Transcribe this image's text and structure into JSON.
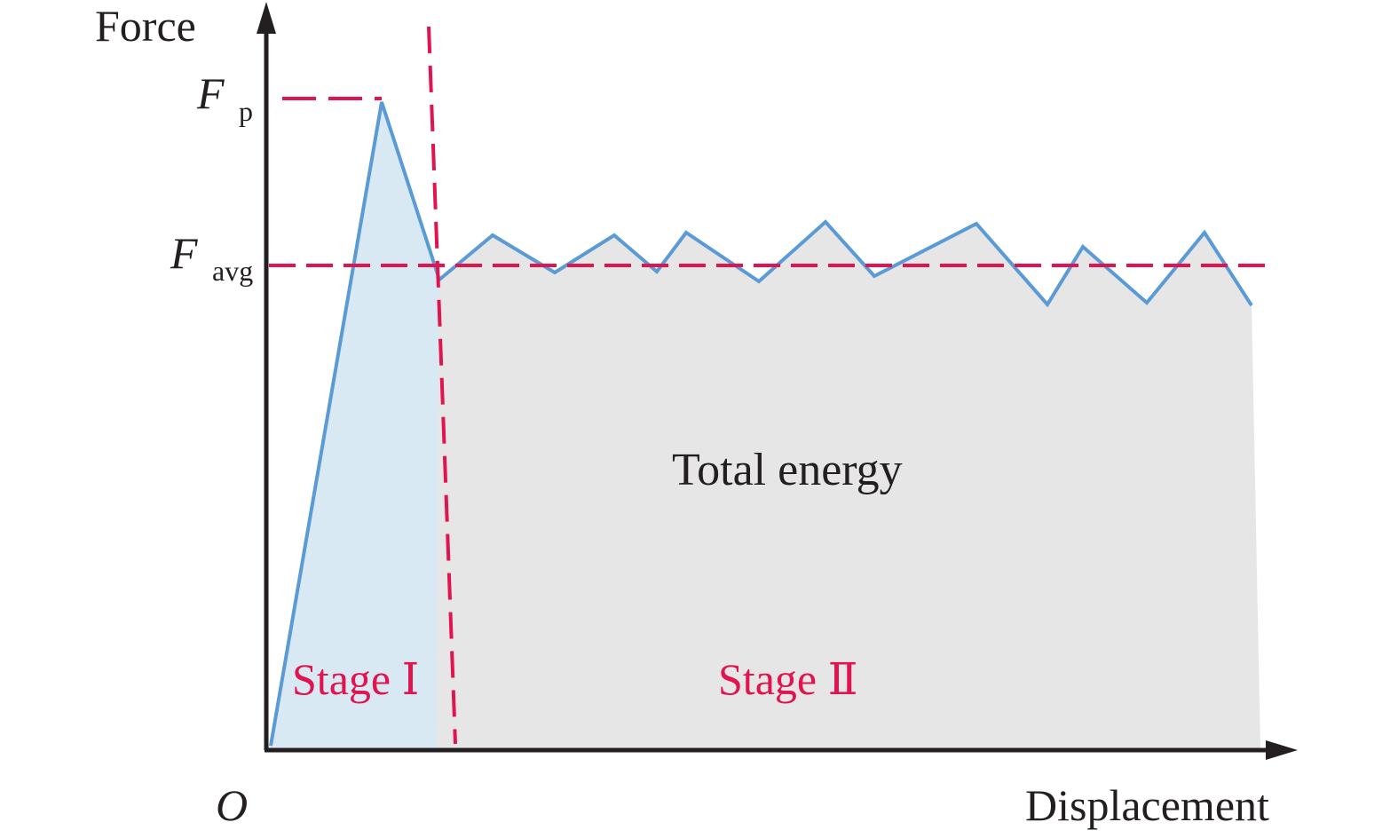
{
  "labels": {
    "y_axis": "Force",
    "x_axis": "Displacement",
    "origin": "O",
    "peak_force_symbol": "F",
    "peak_force_subscript": "p",
    "avg_force_symbol": "F",
    "avg_force_subscript": "avg",
    "area": "Total energy",
    "stage_1": "Stage Ⅰ",
    "stage_2": "Stage Ⅱ"
  },
  "colors": {
    "axis": "#231f20",
    "curve": "#5b9bd5",
    "fill_stage1": "#d6e9f5",
    "fill_area": "#e6e6e6",
    "dashed": "#e0144f",
    "stage_text": "#e0144f"
  },
  "icons": {
    "y_arrow": "arrowhead-up-icon",
    "x_arrow": "arrowhead-right-icon"
  }
}
